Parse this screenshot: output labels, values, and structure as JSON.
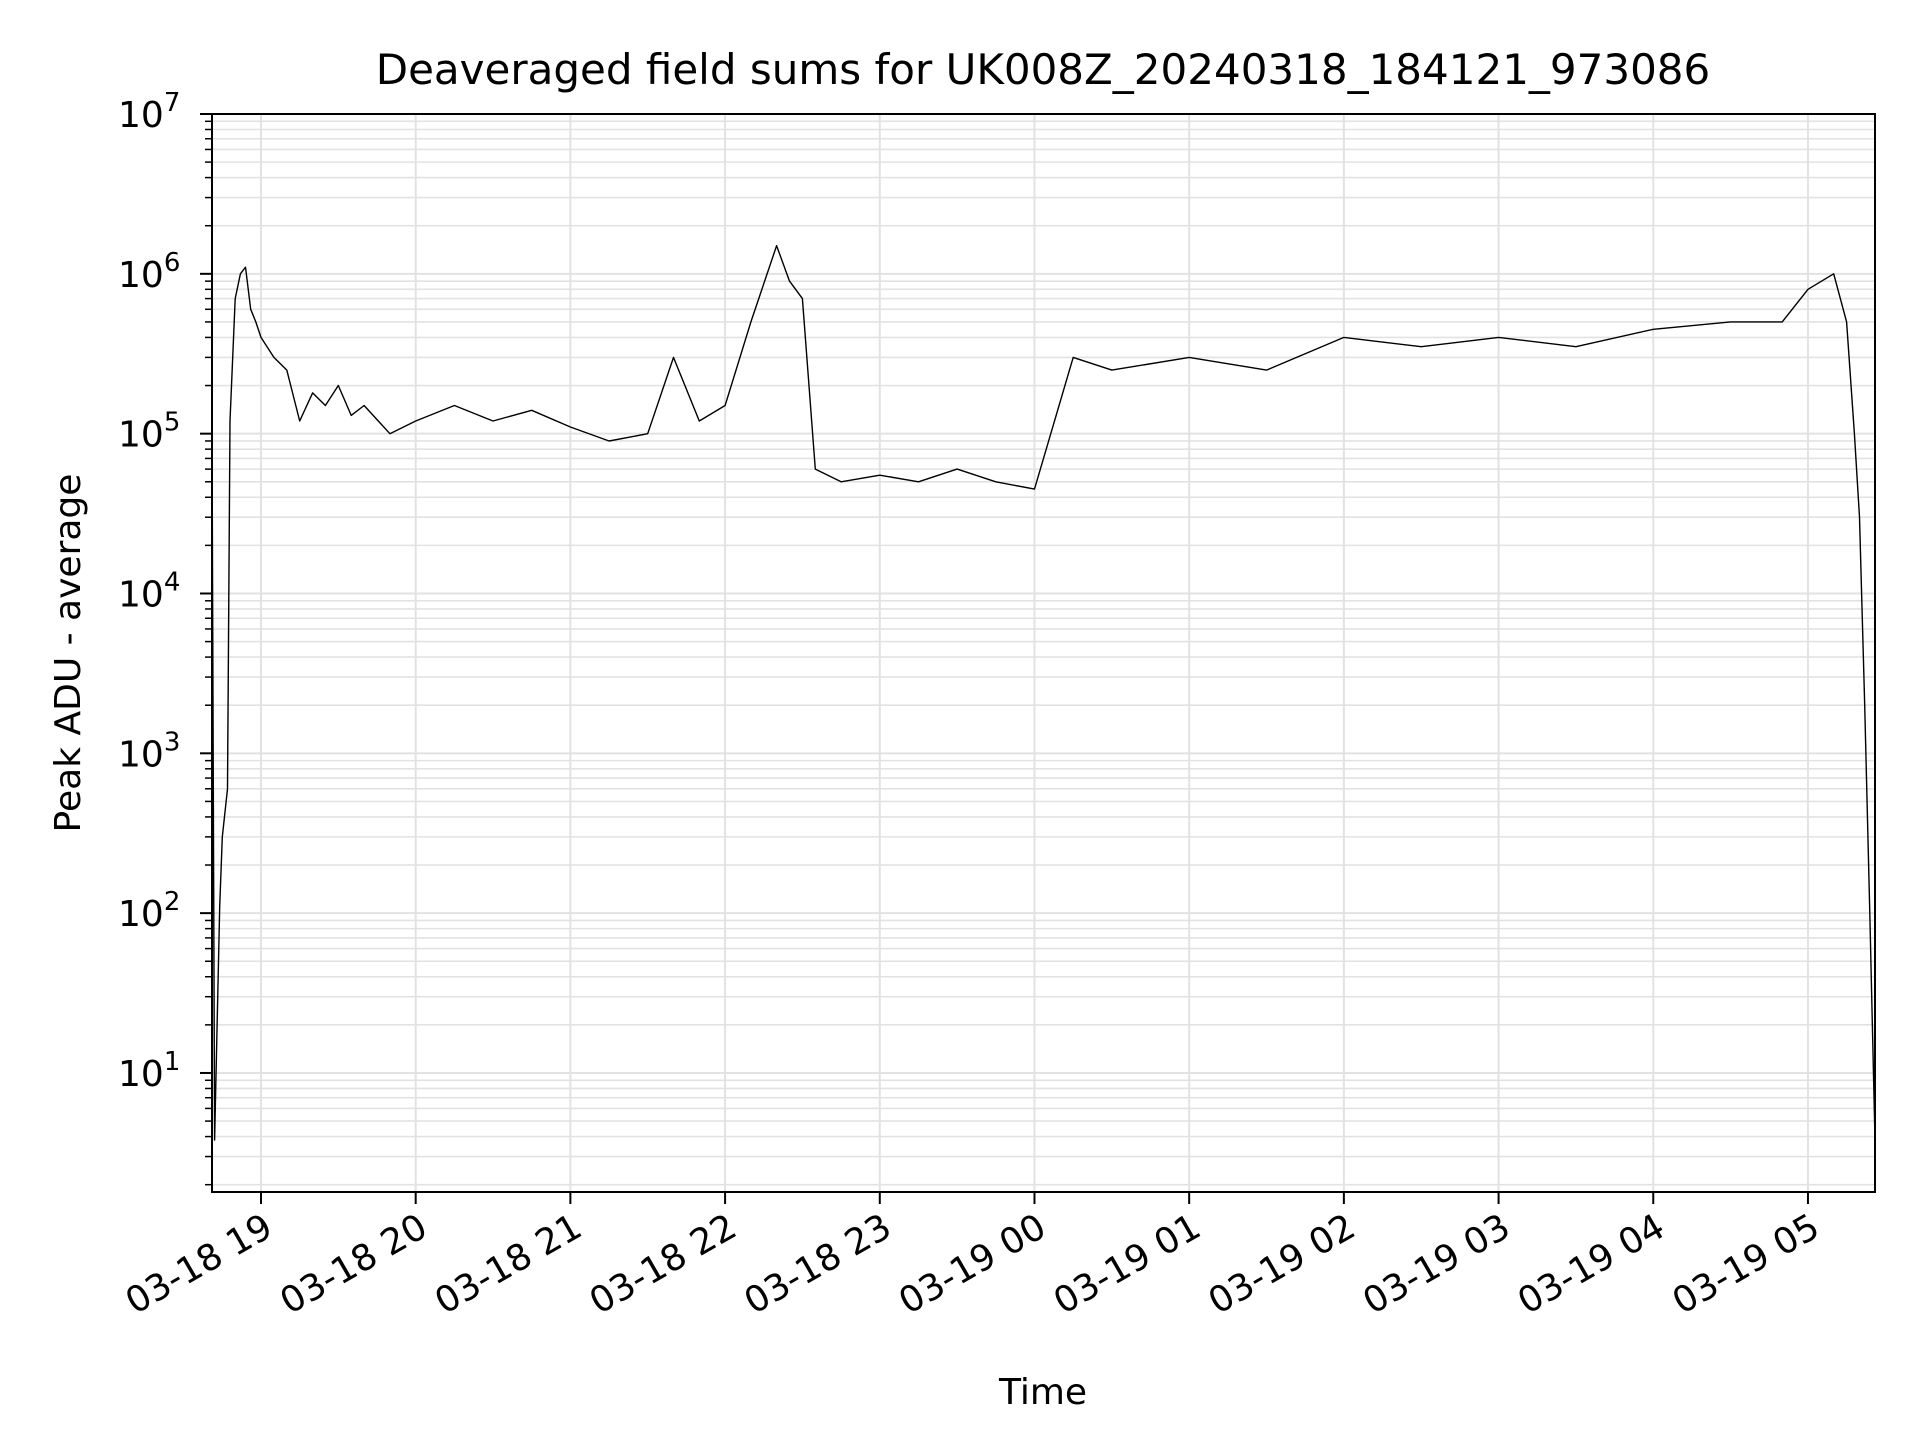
{
  "chart_data": {
    "type": "line",
    "title": "Deaveraged field sums for UK008Z_20240318_184121_973086",
    "xlabel": "Time",
    "ylabel": "Peak ADU - average",
    "yscale": "log",
    "ylim": [
      1.8,
      10000000
    ],
    "xlim": [
      "2024-03-18 18:41",
      "2024-03-19 05:26"
    ],
    "x_tick_labels": [
      "03-18 19",
      "03-18 20",
      "03-18 21",
      "03-18 22",
      "03-18 23",
      "03-19 00",
      "03-19 01",
      "03-19 02",
      "03-19 03",
      "03-19 04",
      "03-19 05"
    ],
    "y_tick_labels": [
      {
        "base": "10",
        "exp": "1"
      },
      {
        "base": "10",
        "exp": "2"
      },
      {
        "base": "10",
        "exp": "3"
      },
      {
        "base": "10",
        "exp": "4"
      },
      {
        "base": "10",
        "exp": "5"
      },
      {
        "base": "10",
        "exp": "6"
      },
      {
        "base": "10",
        "exp": "7"
      }
    ],
    "grid": true,
    "line_color": "#000000",
    "grid_color": "#e2e2e2",
    "series": [
      {
        "x": [
          "2024-03-18 18:41",
          "2024-03-18 18:42",
          "2024-03-18 18:44",
          "2024-03-18 18:45",
          "2024-03-18 18:47",
          "2024-03-18 18:48",
          "2024-03-18 18:50",
          "2024-03-18 18:52",
          "2024-03-18 18:54",
          "2024-03-18 18:56",
          "2024-03-18 18:58",
          "2024-03-18 19:00",
          "2024-03-18 19:05",
          "2024-03-18 19:10",
          "2024-03-18 19:15",
          "2024-03-18 19:20",
          "2024-03-18 19:25",
          "2024-03-18 19:30",
          "2024-03-18 19:35",
          "2024-03-18 19:40",
          "2024-03-18 19:50",
          "2024-03-18 20:00",
          "2024-03-18 20:15",
          "2024-03-18 20:30",
          "2024-03-18 20:45",
          "2024-03-18 21:00",
          "2024-03-18 21:15",
          "2024-03-18 21:30",
          "2024-03-18 21:40",
          "2024-03-18 21:50",
          "2024-03-18 22:00",
          "2024-03-18 22:10",
          "2024-03-18 22:20",
          "2024-03-18 22:25",
          "2024-03-18 22:30",
          "2024-03-18 22:35",
          "2024-03-18 22:45",
          "2024-03-18 23:00",
          "2024-03-18 23:15",
          "2024-03-18 23:30",
          "2024-03-18 23:45",
          "2024-03-19 00:00",
          "2024-03-19 00:15",
          "2024-03-19 00:30",
          "2024-03-19 01:00",
          "2024-03-19 01:30",
          "2024-03-19 02:00",
          "2024-03-19 02:30",
          "2024-03-19 03:00",
          "2024-03-19 03:30",
          "2024-03-19 04:00",
          "2024-03-19 04:30",
          "2024-03-19 04:50",
          "2024-03-19 05:00",
          "2024-03-19 05:10",
          "2024-03-19 05:15",
          "2024-03-19 05:18",
          "2024-03-19 05:20",
          "2024-03-19 05:22",
          "2024-03-19 05:24",
          "2024-03-19 05:26"
        ],
        "y": [
          110000,
          3.8,
          110,
          300,
          600,
          120000,
          700000,
          1000000,
          1100000,
          600000,
          500000,
          400000,
          300000,
          250000,
          120000,
          180000,
          150000,
          200000,
          130000,
          150000,
          100000,
          120000,
          150000,
          120000,
          140000,
          110000,
          90000,
          100000,
          300000,
          120000,
          150000,
          500000,
          1500000,
          900000,
          700000,
          60000,
          50000,
          55000,
          50000,
          60000,
          50000,
          45000,
          300000,
          250000,
          300000,
          250000,
          400000,
          350000,
          400000,
          350000,
          450000,
          500000,
          500000,
          800000,
          1000000,
          500000,
          100000,
          30000,
          2000,
          100,
          3.8
        ]
      }
    ]
  }
}
